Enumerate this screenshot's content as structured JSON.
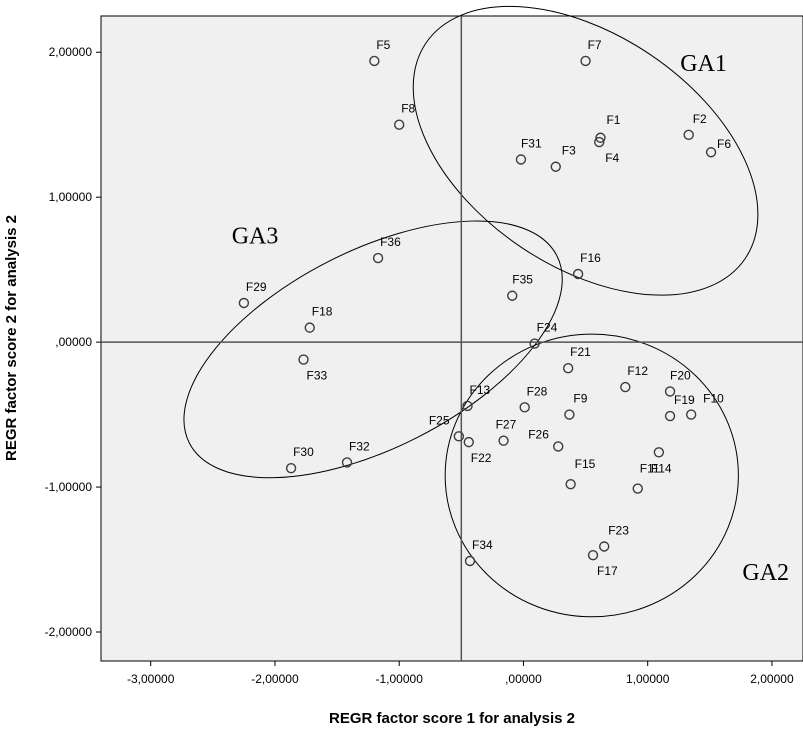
{
  "chart_data": {
    "type": "scatter",
    "xlabel": "REGR factor score   1 for analysis 2",
    "ylabel": "REGR factor score   2 for analysis 2",
    "xlim": [
      -3.4,
      2.25
    ],
    "ylim": [
      -2.2,
      2.25
    ],
    "x_ticks": [
      -3,
      -2,
      -1,
      0,
      1,
      2
    ],
    "x_tick_labels": [
      "-3,00000",
      "-2,00000",
      "-1,00000",
      ",00000",
      "1,00000",
      "2,00000"
    ],
    "y_ticks": [
      2,
      1,
      0,
      -1,
      -2
    ],
    "y_tick_labels": [
      "2,00000",
      "1,00000",
      ",00000",
      "-1,00000",
      "-2,00000"
    ],
    "reference_lines": {
      "x": -0.5,
      "y": 0
    },
    "grid": false,
    "point_color": "#3c3c3c",
    "plot_background": "#f0f0f0",
    "points": [
      {
        "label": "F5",
        "x": -1.2,
        "y": 1.94
      },
      {
        "label": "F7",
        "x": 0.5,
        "y": 1.94
      },
      {
        "label": "F8",
        "x": -1.0,
        "y": 1.5
      },
      {
        "label": "F1",
        "x": 0.62,
        "y": 1.41
      },
      {
        "label": "F4",
        "x": 0.61,
        "y": 1.38
      },
      {
        "label": "F2",
        "x": 1.33,
        "y": 1.43
      },
      {
        "label": "F6",
        "x": 1.51,
        "y": 1.31
      },
      {
        "label": "F31",
        "x": -0.02,
        "y": 1.26
      },
      {
        "label": "F3",
        "x": 0.26,
        "y": 1.21
      },
      {
        "label": "F16",
        "x": 0.44,
        "y": 0.47
      },
      {
        "label": "F35",
        "x": -0.09,
        "y": 0.32
      },
      {
        "label": "F36",
        "x": -1.17,
        "y": 0.58
      },
      {
        "label": "F29",
        "x": -2.25,
        "y": 0.27
      },
      {
        "label": "F18",
        "x": -1.72,
        "y": 0.1
      },
      {
        "label": "F33",
        "x": -1.77,
        "y": -0.12
      },
      {
        "label": "F24",
        "x": 0.09,
        "y": -0.01
      },
      {
        "label": "F21",
        "x": 0.36,
        "y": -0.18
      },
      {
        "label": "F12",
        "x": 0.82,
        "y": -0.31
      },
      {
        "label": "F20",
        "x": 1.18,
        "y": -0.34
      },
      {
        "label": "F13",
        "x": -0.45,
        "y": -0.44
      },
      {
        "label": "F28",
        "x": 0.01,
        "y": -0.45
      },
      {
        "label": "F9",
        "x": 0.37,
        "y": -0.5
      },
      {
        "label": "F19",
        "x": 1.18,
        "y": -0.51
      },
      {
        "label": "F10",
        "x": 1.35,
        "y": -0.5
      },
      {
        "label": "F25",
        "x": -0.52,
        "y": -0.65
      },
      {
        "label": "F22",
        "x": -0.44,
        "y": -0.69
      },
      {
        "label": "F27",
        "x": -0.16,
        "y": -0.68
      },
      {
        "label": "F26",
        "x": 0.28,
        "y": -0.72
      },
      {
        "label": "F14",
        "x": 1.09,
        "y": -0.76
      },
      {
        "label": "F15",
        "x": 0.38,
        "y": -0.98
      },
      {
        "label": "F11",
        "x": 0.92,
        "y": -1.01
      },
      {
        "label": "F30",
        "x": -1.87,
        "y": -0.87
      },
      {
        "label": "F32",
        "x": -1.42,
        "y": -0.83
      },
      {
        "label": "F23",
        "x": 0.65,
        "y": -1.41
      },
      {
        "label": "F17",
        "x": 0.56,
        "y": -1.47
      },
      {
        "label": "F34",
        "x": -0.43,
        "y": -1.51
      }
    ],
    "groups": [
      {
        "name": "GA1",
        "center": [
          0.5,
          1.32
        ],
        "rx": 1.55,
        "ry": 0.8,
        "rotation_deg": 34
      },
      {
        "name": "GA2",
        "center": [
          0.55,
          -0.92
        ],
        "rx": 1.18,
        "ry": 0.975,
        "rotation_deg": 0
      },
      {
        "name": "GA3",
        "center": [
          -1.21,
          -0.05
        ],
        "rx": 1.66,
        "ry": 0.68,
        "rotation_deg": -27
      }
    ]
  }
}
